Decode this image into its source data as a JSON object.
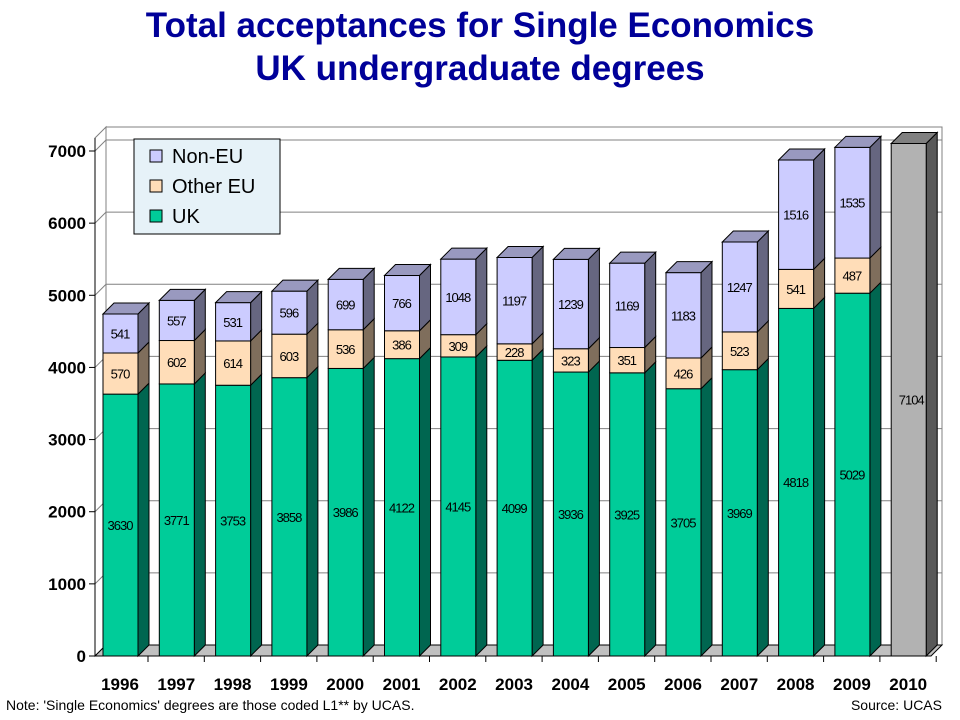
{
  "chart_data": {
    "type": "bar",
    "stacked": true,
    "3d": true,
    "title": "Total acceptances for Single Economics",
    "subtitle": "UK undergraduate degrees",
    "categories": [
      "1996",
      "1997",
      "1998",
      "1999",
      "2000",
      "2001",
      "2002",
      "2003",
      "2004",
      "2005",
      "2006",
      "2007",
      "2008",
      "2009",
      "2010"
    ],
    "series": [
      {
        "name": "UK",
        "color": "#00CC99",
        "values": [
          3630,
          3771,
          3753,
          3858,
          3986,
          4122,
          4145,
          4099,
          3936,
          3925,
          3705,
          3969,
          4818,
          5029,
          null
        ]
      },
      {
        "name": "Other EU",
        "color": "#FFDDB8",
        "values": [
          570,
          602,
          614,
          603,
          536,
          386,
          309,
          228,
          323,
          351,
          426,
          523,
          541,
          487,
          null
        ]
      },
      {
        "name": "Non-EU",
        "color": "#CCCCFF",
        "values": [
          541,
          557,
          531,
          596,
          699,
          766,
          1048,
          1197,
          1239,
          1169,
          1183,
          1247,
          1516,
          1535,
          null
        ]
      }
    ],
    "total_2010": {
      "value": 7104,
      "color": "#B2B2B2"
    },
    "yticks": [
      0,
      1000,
      2000,
      3000,
      4000,
      5000,
      6000,
      7000
    ],
    "ylim": [
      0,
      7000
    ],
    "grid": true,
    "legend": "top-left"
  },
  "footer": {
    "note": "Note: 'Single Economics' degrees are those coded L1** by UCAS.",
    "source": "Source: UCAS"
  }
}
